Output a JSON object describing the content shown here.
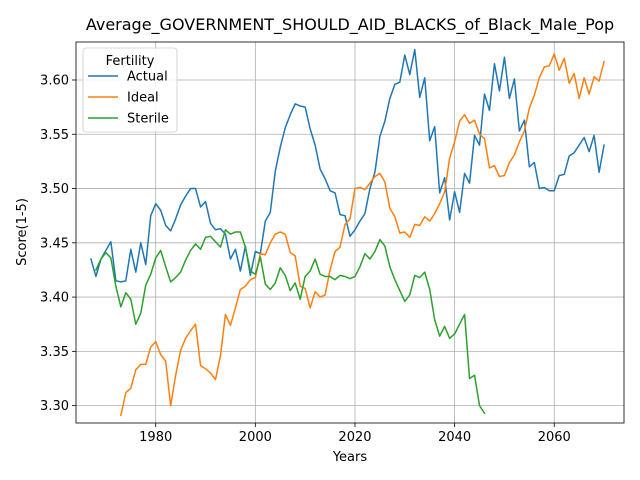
{
  "chart_data": {
    "type": "line",
    "title": "Average_GOVERNMENT_SHOULD_AID_BLACKS_of_Black_Male_Pop",
    "xlabel": "Years",
    "ylabel": "Score(1-5)",
    "xlim": [
      1964,
      2074
    ],
    "ylim": [
      3.284,
      3.635
    ],
    "xticks": [
      1980,
      2000,
      2020,
      2040,
      2060
    ],
    "yticks": [
      3.3,
      3.35,
      3.4,
      3.45,
      3.5,
      3.55,
      3.6
    ],
    "ytick_labels": [
      "3.30",
      "3.35",
      "3.40",
      "3.45",
      "3.50",
      "3.55",
      "3.60"
    ],
    "grid": true,
    "legend": {
      "title": "Fertility",
      "placement": "top-left"
    },
    "series": [
      {
        "name": "Actual",
        "color": "#1f77b4",
        "x": [
          1967,
          1968,
          1969,
          1970,
          1971,
          1972,
          1973,
          1974,
          1975,
          1976,
          1977,
          1978,
          1979,
          1980,
          1981,
          1982,
          1983,
          1984,
          1985,
          1986,
          1987,
          1988,
          1989,
          1990,
          1991,
          1992,
          1993,
          1994,
          1995,
          1996,
          1997,
          1998,
          1999,
          2000,
          2001,
          2002,
          2003,
          2004,
          2005,
          2006,
          2007,
          2008,
          2009,
          2010,
          2011,
          2012,
          2013,
          2014,
          2015,
          2016,
          2017,
          2018,
          2019,
          2020,
          2021,
          2022,
          2023,
          2024,
          2025,
          2026,
          2027,
          2028,
          2029,
          2030,
          2031,
          2032,
          2033,
          2034,
          2035,
          2036,
          2037,
          2038,
          2039,
          2040,
          2041,
          2042,
          2043,
          2044,
          2045,
          2046,
          2047,
          2048,
          2049,
          2050,
          2051,
          2052,
          2053,
          2054,
          2055,
          2056,
          2057,
          2058,
          2059,
          2060,
          2061,
          2062,
          2063,
          2064,
          2065,
          2066,
          2067,
          2068,
          2069,
          2070
        ],
        "y": [
          3.435,
          3.419,
          3.435,
          3.443,
          3.451,
          3.415,
          3.414,
          3.415,
          3.444,
          3.423,
          3.45,
          3.43,
          3.475,
          3.486,
          3.48,
          3.466,
          3.461,
          3.472,
          3.485,
          3.493,
          3.5,
          3.5,
          3.483,
          3.488,
          3.468,
          3.462,
          3.463,
          3.458,
          3.435,
          3.444,
          3.424,
          3.447,
          3.42,
          3.442,
          3.44,
          3.47,
          3.478,
          3.516,
          3.538,
          3.556,
          3.568,
          3.578,
          3.576,
          3.575,
          3.555,
          3.54,
          3.518,
          3.509,
          3.498,
          3.496,
          3.476,
          3.475,
          3.456,
          3.462,
          3.47,
          3.477,
          3.5,
          3.515,
          3.548,
          3.562,
          3.583,
          3.596,
          3.598,
          3.623,
          3.605,
          3.628,
          3.584,
          3.602,
          3.544,
          3.557,
          3.496,
          3.51,
          3.471,
          3.497,
          3.478,
          3.514,
          3.505,
          3.549,
          3.54,
          3.587,
          3.572,
          3.615,
          3.59,
          3.621,
          3.583,
          3.601,
          3.553,
          3.563,
          3.52,
          3.524,
          3.5,
          3.501,
          3.498,
          3.498,
          3.512,
          3.513,
          3.53,
          3.533,
          3.54,
          3.547,
          3.534,
          3.549,
          3.515,
          3.54
        ]
      },
      {
        "name": "Ideal",
        "color": "#ff7f0e",
        "x": [
          1973,
          1974,
          1975,
          1976,
          1977,
          1978,
          1979,
          1980,
          1981,
          1982,
          1983,
          1984,
          1985,
          1986,
          1987,
          1988,
          1989,
          1990,
          1991,
          1992,
          1993,
          1994,
          1995,
          1996,
          1997,
          1998,
          1999,
          2000,
          2001,
          2002,
          2003,
          2004,
          2005,
          2006,
          2007,
          2008,
          2009,
          2010,
          2011,
          2012,
          2013,
          2014,
          2015,
          2016,
          2017,
          2018,
          2019,
          2020,
          2021,
          2022,
          2023,
          2024,
          2025,
          2026,
          2027,
          2028,
          2029,
          2030,
          2031,
          2032,
          2033,
          2034,
          2035,
          2036,
          2037,
          2038,
          2039,
          2040,
          2041,
          2042,
          2043,
          2044,
          2045,
          2046,
          2047,
          2048,
          2049,
          2050,
          2051,
          2052,
          2053,
          2054,
          2055,
          2056,
          2057,
          2058,
          2059,
          2060,
          2061,
          2062,
          2063,
          2064,
          2065,
          2066,
          2067,
          2068,
          2069,
          2070
        ],
        "y": [
          3.291,
          3.312,
          3.316,
          3.333,
          3.338,
          3.338,
          3.354,
          3.359,
          3.347,
          3.341,
          3.3,
          3.328,
          3.351,
          3.362,
          3.369,
          3.375,
          3.337,
          3.334,
          3.33,
          3.324,
          3.346,
          3.384,
          3.374,
          3.39,
          3.407,
          3.41,
          3.416,
          3.418,
          3.44,
          3.439,
          3.45,
          3.458,
          3.46,
          3.458,
          3.441,
          3.438,
          3.41,
          3.408,
          3.39,
          3.405,
          3.4,
          3.402,
          3.425,
          3.442,
          3.446,
          3.467,
          3.472,
          3.5,
          3.501,
          3.499,
          3.505,
          3.511,
          3.514,
          3.506,
          3.482,
          3.474,
          3.459,
          3.46,
          3.455,
          3.467,
          3.466,
          3.474,
          3.47,
          3.477,
          3.486,
          3.497,
          3.528,
          3.543,
          3.562,
          3.568,
          3.56,
          3.563,
          3.55,
          3.546,
          3.519,
          3.521,
          3.511,
          3.512,
          3.524,
          3.531,
          3.543,
          3.553,
          3.574,
          3.586,
          3.602,
          3.612,
          3.613,
          3.624,
          3.609,
          3.62,
          3.597,
          3.606,
          3.583,
          3.602,
          3.587,
          3.603,
          3.599,
          3.617
        ]
      },
      {
        "name": "Sterile",
        "color": "#2ca02c",
        "x": [
          1968,
          1969,
          1970,
          1971,
          1972,
          1973,
          1974,
          1975,
          1976,
          1977,
          1978,
          1979,
          1980,
          1981,
          1982,
          1983,
          1984,
          1985,
          1986,
          1987,
          1988,
          1989,
          1990,
          1991,
          1992,
          1993,
          1994,
          1995,
          1996,
          1997,
          1998,
          1999,
          2000,
          2001,
          2002,
          2003,
          2004,
          2005,
          2006,
          2007,
          2008,
          2009,
          2010,
          2011,
          2012,
          2013,
          2014,
          2015,
          2016,
          2017,
          2018,
          2019,
          2020,
          2021,
          2022,
          2023,
          2024,
          2025,
          2026,
          2027,
          2028,
          2029,
          2030,
          2031,
          2032,
          2033,
          2034,
          2035,
          2036,
          2037,
          2038,
          2039,
          2040,
          2041,
          2042,
          2043,
          2044,
          2045,
          2046
        ],
        "y": [
          3.425,
          3.435,
          3.441,
          3.436,
          3.41,
          3.391,
          3.404,
          3.398,
          3.375,
          3.385,
          3.411,
          3.421,
          3.436,
          3.443,
          3.428,
          3.414,
          3.418,
          3.423,
          3.434,
          3.443,
          3.449,
          3.444,
          3.455,
          3.456,
          3.451,
          3.446,
          3.462,
          3.458,
          3.46,
          3.46,
          3.446,
          3.424,
          3.421,
          3.437,
          3.412,
          3.407,
          3.413,
          3.427,
          3.42,
          3.406,
          3.413,
          3.398,
          3.419,
          3.424,
          3.435,
          3.421,
          3.419,
          3.419,
          3.416,
          3.42,
          3.419,
          3.417,
          3.419,
          3.428,
          3.44,
          3.435,
          3.442,
          3.453,
          3.447,
          3.428,
          3.416,
          3.406,
          3.396,
          3.402,
          3.42,
          3.418,
          3.423,
          3.407,
          3.379,
          3.364,
          3.373,
          3.362,
          3.366,
          3.375,
          3.384,
          3.325,
          3.328,
          3.3,
          3.293
        ]
      }
    ]
  }
}
